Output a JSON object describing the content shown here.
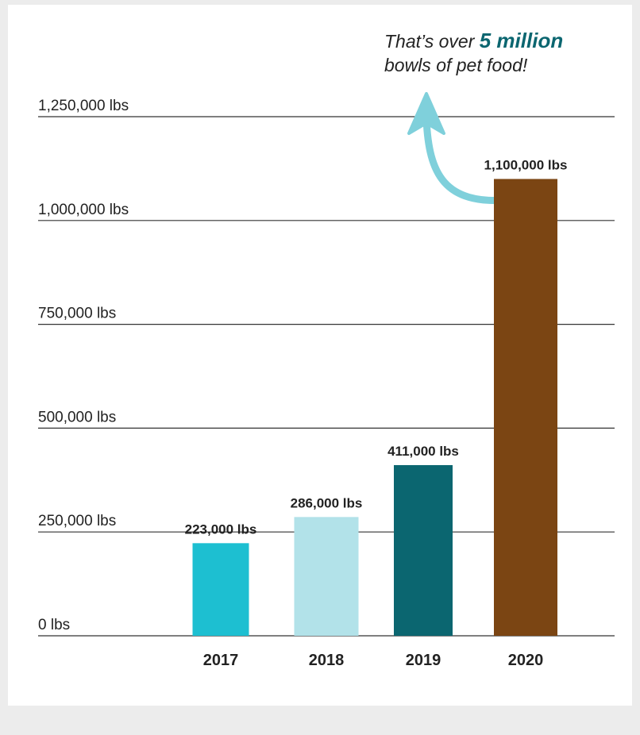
{
  "annotation": {
    "prefix": "That’s over",
    "highlight": "5 million",
    "line2": "bowls of pet food!",
    "highlight_color": "#0b6670",
    "arrow_color": "#7fd0db"
  },
  "chart_data": {
    "type": "bar",
    "categories": [
      "2017",
      "2018",
      "2019",
      "2020"
    ],
    "values": [
      223000,
      286000,
      411000,
      1100000
    ],
    "value_labels": [
      "223,000 lbs",
      "286,000 lbs",
      "411,000 lbs",
      "1,100,000 lbs"
    ],
    "colors": [
      "#1dbfd1",
      "#b2e2e9",
      "#0b6670",
      "#7b4513"
    ],
    "yticks": [
      0,
      250000,
      500000,
      750000,
      1000000,
      1250000
    ],
    "ytick_labels": [
      "0 lbs",
      "250,000 lbs",
      "500,000 lbs",
      "750,000 lbs",
      "1,000,000 lbs",
      "1,250,000 lbs"
    ],
    "ylim": [
      0,
      1250000
    ],
    "grid": true,
    "title": "",
    "xlabel": "",
    "ylabel": ""
  }
}
